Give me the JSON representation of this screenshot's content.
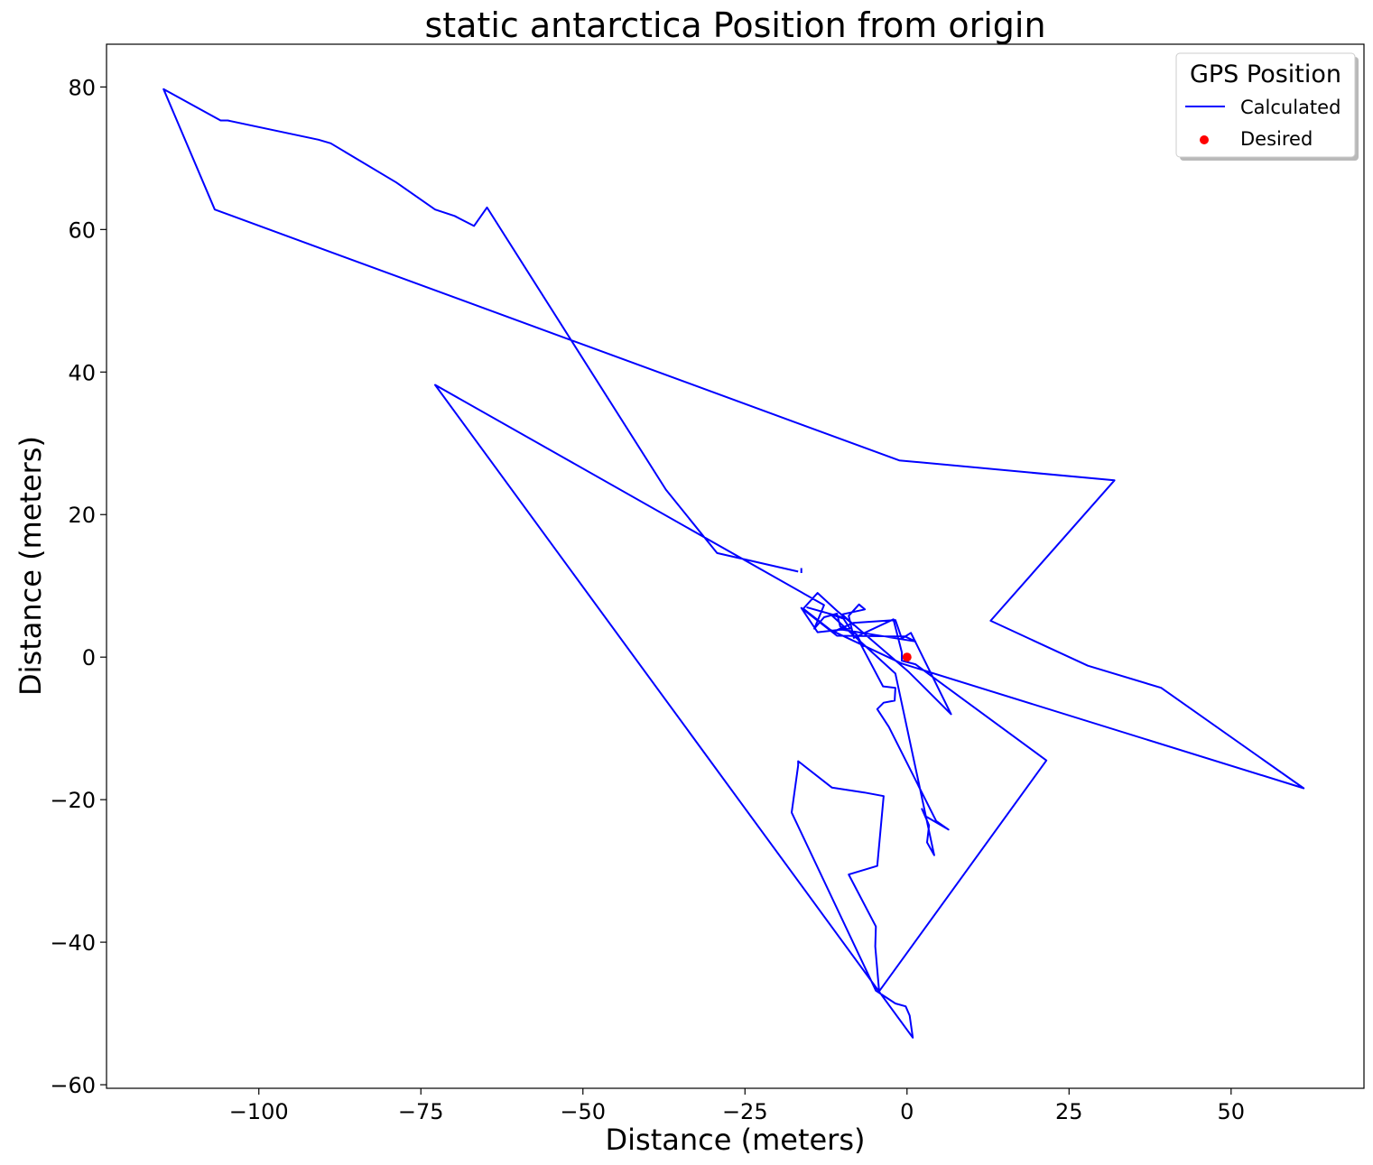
{
  "chart_data": {
    "type": "line",
    "title": "static antarctica Position from origin",
    "xlabel": "Distance (meters)",
    "ylabel": "Distance (meters)",
    "xlim": [
      -123.5,
      70.5
    ],
    "ylim": [
      -60.5,
      86
    ],
    "xticks": [
      -100,
      -75,
      -50,
      -25,
      0,
      25,
      50
    ],
    "xtick_labels": [
      "−100",
      "−75",
      "−50",
      "−25",
      "0",
      "25",
      "50"
    ],
    "yticks": [
      80,
      60,
      40,
      20,
      0,
      -20,
      -40,
      -60
    ],
    "ytick_labels": [
      "80",
      "60",
      "40",
      "20",
      "0",
      "−20",
      "−40",
      "−60"
    ],
    "grid": false,
    "legend": {
      "title": "GPS Position",
      "placement": "top-right",
      "entries": [
        {
          "label": "Calculated",
          "kind": "line",
          "color": "#0000ff"
        },
        {
          "label": "Desired",
          "kind": "marker",
          "color": "#ff0000"
        }
      ]
    },
    "series": [
      {
        "name": "Calculated",
        "kind": "line",
        "color": "#0000ff",
        "segments": [
          [
            [
              -16.3,
              12.5
            ],
            [
              -16.3,
              11.8
            ]
          ],
          [
            [
              -16.8,
              12.0
            ],
            [
              -29.3,
              14.6
            ],
            [
              -37.2,
              23.5
            ],
            [
              -64.8,
              63.1
            ],
            [
              -66.8,
              60.5
            ],
            [
              -69.8,
              61.9
            ],
            [
              -72.8,
              62.8
            ],
            [
              -78.8,
              66.6
            ],
            [
              -88.9,
              72.1
            ],
            [
              -90.8,
              72.6
            ],
            [
              -104.8,
              75.3
            ],
            [
              -105.9,
              75.3
            ],
            [
              -114.7,
              79.7
            ],
            [
              -106.8,
              62.8
            ],
            [
              -1.2,
              27.6
            ],
            [
              32.0,
              24.8
            ],
            [
              12.9,
              5.1
            ],
            [
              27.9,
              -1.2
            ],
            [
              39.2,
              -4.3
            ],
            [
              61.2,
              -18.4
            ],
            [
              -0.8,
              -0.9
            ],
            [
              -11.8,
              3.8
            ],
            [
              -16.0,
              6.8
            ],
            [
              -13.8,
              9.0
            ],
            [
              -10.8,
              6.5
            ],
            [
              -8.2,
              4.5
            ],
            [
              -10.0,
              6.0
            ],
            [
              -6.5,
              6.7
            ],
            [
              -7.4,
              7.4
            ],
            [
              -9.0,
              5.8
            ],
            [
              -8.2,
              2.7
            ],
            [
              -2.1,
              5.3
            ],
            [
              -0.8,
              0.7
            ],
            [
              -0.8,
              -0.5
            ],
            [
              1.3,
              -1.0
            ],
            [
              21.5,
              -14.5
            ],
            [
              -4.3,
              -46.9
            ],
            [
              -4.9,
              -40.6
            ],
            [
              -4.8,
              -37.8
            ],
            [
              -9.0,
              -30.5
            ],
            [
              -4.6,
              -29.3
            ],
            [
              -3.6,
              -19.5
            ],
            [
              -6.6,
              -19.0
            ],
            [
              -11.6,
              -18.3
            ],
            [
              -16.8,
              -14.6
            ],
            [
              -16.8,
              -15.2
            ],
            [
              -17.8,
              -21.8
            ],
            [
              -4.8,
              -46.8
            ],
            [
              -1.8,
              -48.6
            ],
            [
              -0.2,
              -49.0
            ],
            [
              0.4,
              -50.3
            ],
            [
              0.9,
              -53.4
            ],
            [
              -72.8,
              38.2
            ],
            [
              -12.8,
              7.3
            ],
            [
              -14.3,
              4.0
            ],
            [
              -12.8,
              5.6
            ],
            [
              -10.8,
              6.1
            ],
            [
              -10.3,
              4.3
            ],
            [
              -7.8,
              3.2
            ],
            [
              -6.8,
              1.5
            ],
            [
              -7.6,
              2.6
            ],
            [
              -3.7,
              -4.1
            ],
            [
              -1.8,
              -4.3
            ],
            [
              -1.9,
              -6.1
            ],
            [
              -3.6,
              -6.4
            ],
            [
              -4.6,
              -7.3
            ],
            [
              -2.8,
              -9.8
            ],
            [
              4.5,
              -23.0
            ],
            [
              6.4,
              -24.2
            ],
            [
              2.8,
              -22.3
            ],
            [
              2.3,
              -21.3
            ],
            [
              3.4,
              -23.6
            ],
            [
              3.1,
              -26.0
            ],
            [
              4.2,
              -27.8
            ],
            [
              -1.8,
              -2.3
            ],
            [
              -11.8,
              6.0
            ],
            [
              -9.8,
              5.4
            ],
            [
              -8.8,
              4.0
            ],
            [
              -13.8,
              3.5
            ],
            [
              -16.3,
              6.9
            ],
            [
              -10.8,
              3.0
            ],
            [
              -0.3,
              2.9
            ],
            [
              1.3,
              2.2
            ],
            [
              -10.3,
              3.9
            ],
            [
              -11.3,
              3.6
            ],
            [
              -8.3,
              4.8
            ],
            [
              -1.8,
              5.2
            ],
            [
              -0.8,
              2.6
            ],
            [
              0.6,
              3.4
            ],
            [
              6.8,
              -8.0
            ],
            [
              0.3,
              -2.1
            ],
            [
              -9.3,
              5.4
            ],
            [
              -15.5,
              7.0
            ]
          ]
        ]
      },
      {
        "name": "Desired",
        "kind": "scatter",
        "color": "#ff0000",
        "points": [
          [
            0,
            0
          ]
        ]
      }
    ]
  }
}
